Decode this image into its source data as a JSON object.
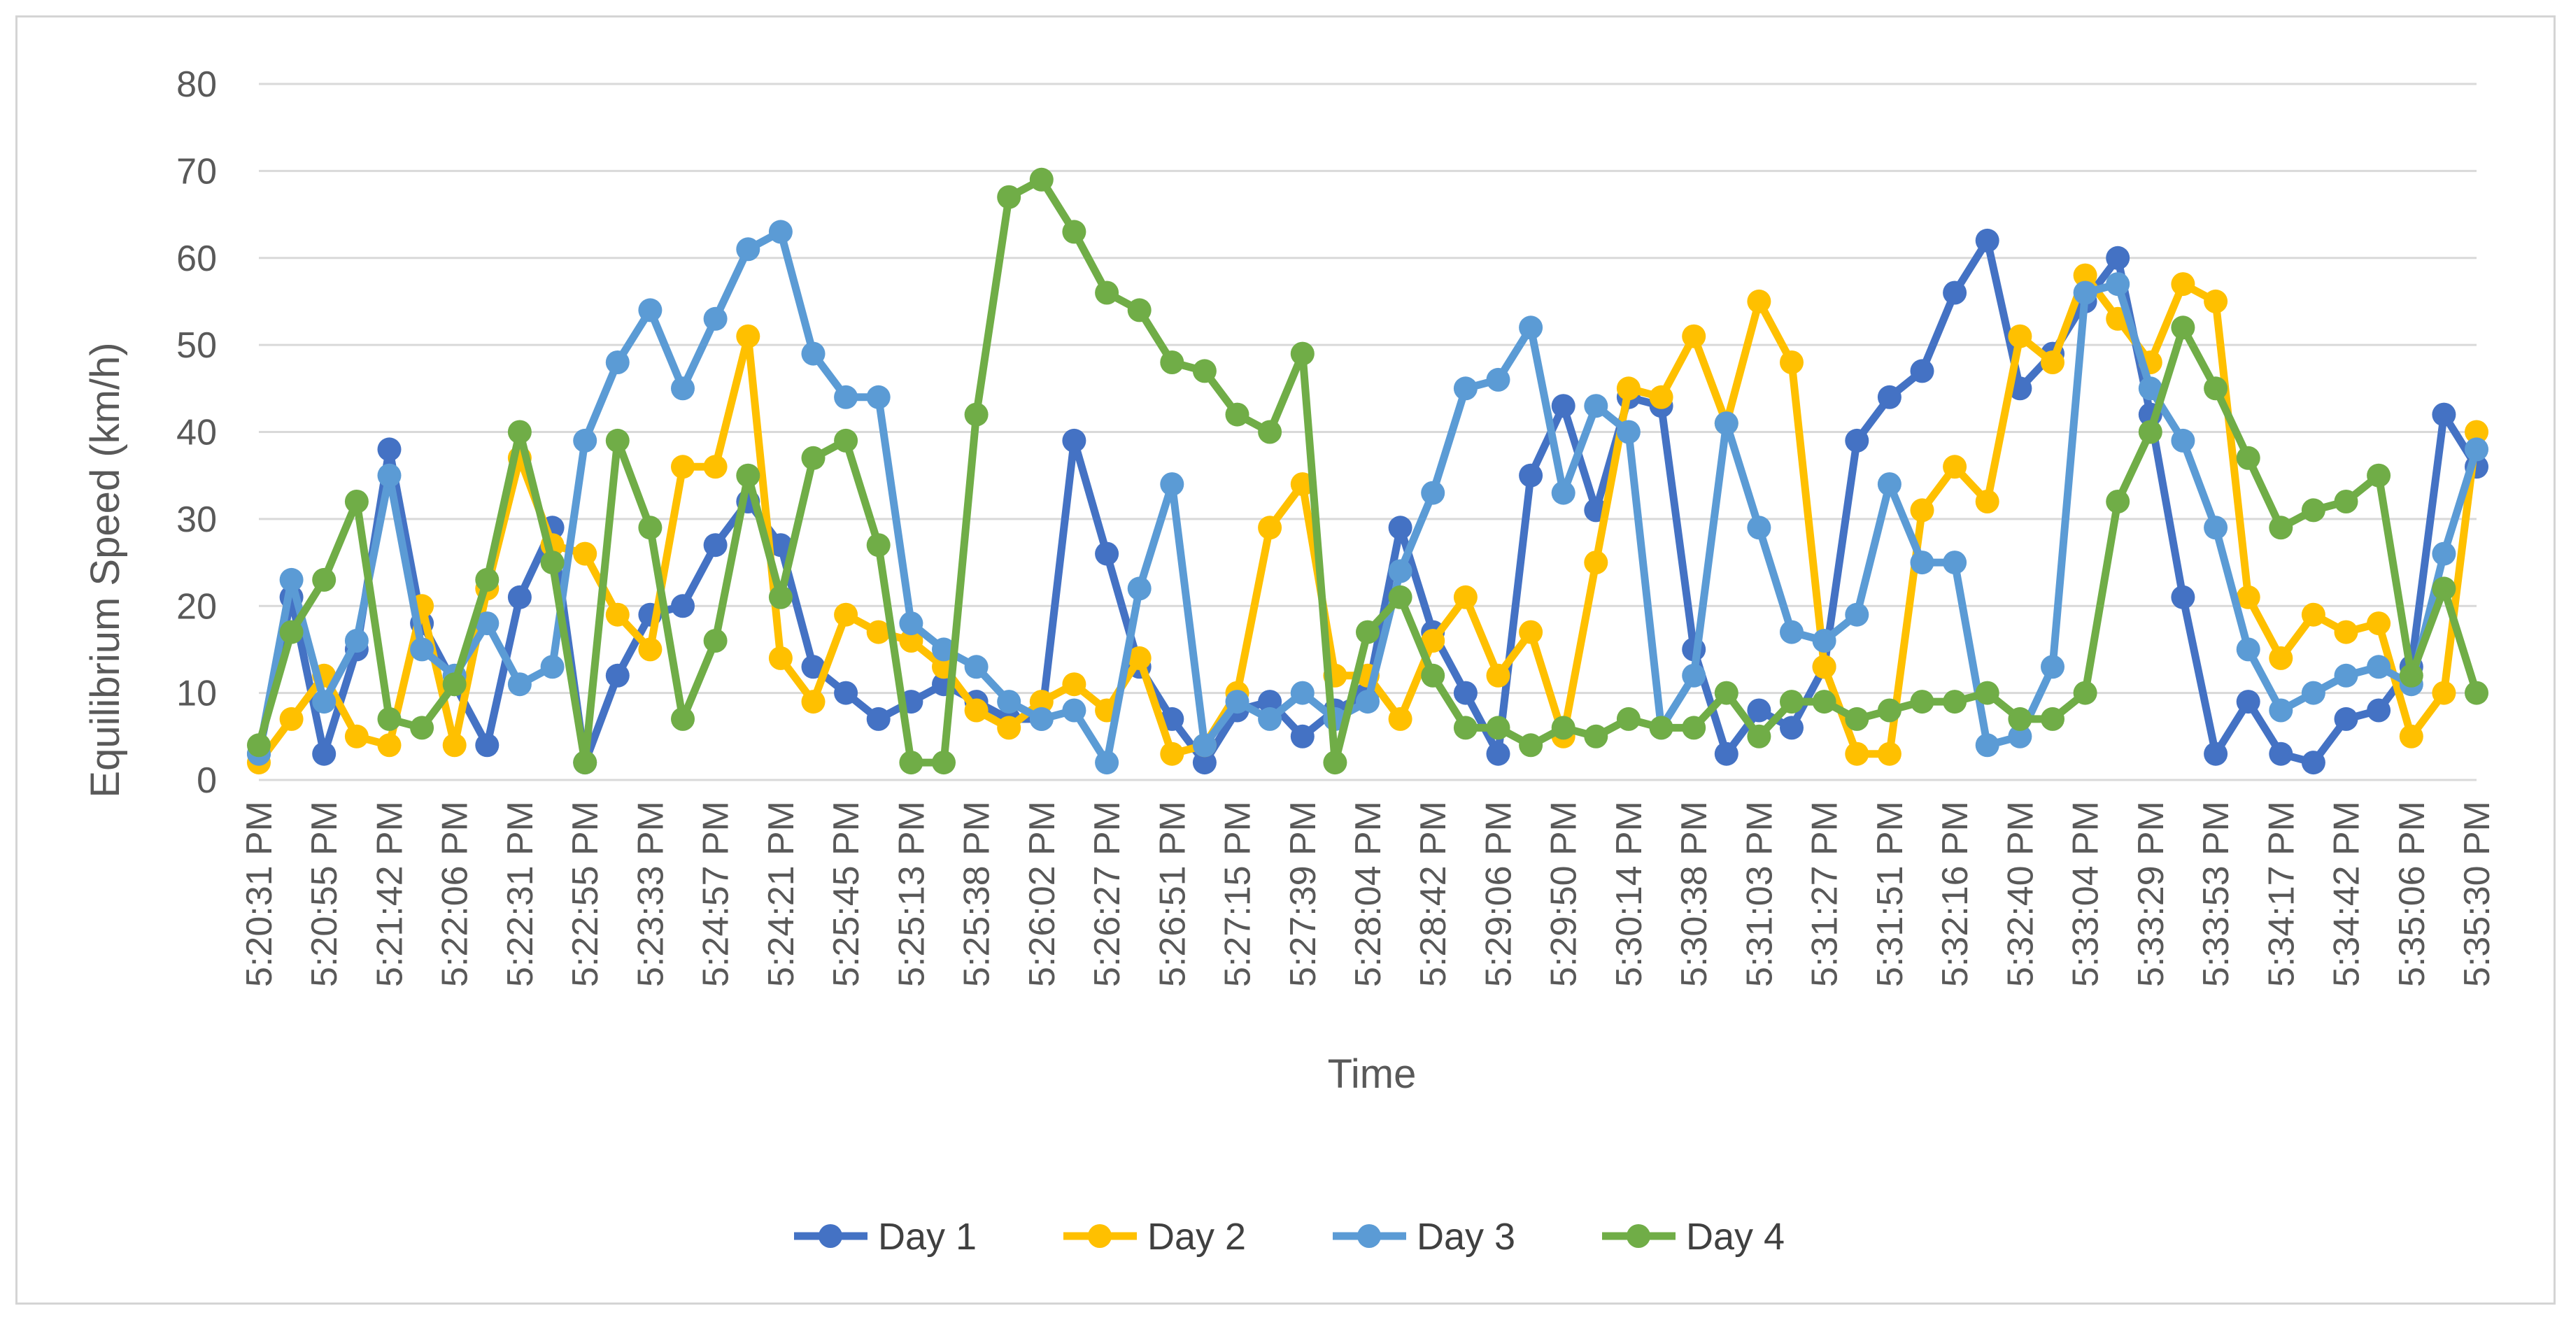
{
  "chart_data": {
    "type": "line",
    "title": "",
    "xlabel": "Time",
    "ylabel": "Equilibrium Speed (km/h)",
    "ylim": [
      0,
      80
    ],
    "yticks": [
      0,
      10,
      20,
      30,
      40,
      50,
      60,
      70,
      80
    ],
    "grid": true,
    "legend_position": "bottom",
    "x_tick_labels": [
      "5:20:31 PM",
      "5:20:55 PM",
      "5:21:42 PM",
      "5:22:06 PM",
      "5:22:31 PM",
      "5:22:55 PM",
      "5:23:33 PM",
      "5:24:57 PM",
      "5:24:21 PM",
      "5:25:45 PM",
      "5:25:13 PM",
      "5:25:38 PM",
      "5:26:02 PM",
      "5:26:27 PM",
      "5:26:51 PM",
      "5:27:15 PM",
      "5:27:39 PM",
      "5:28:04 PM",
      "5:28:42 PM",
      "5:29:06 PM",
      "5:29:50 PM",
      "5:30:14 PM",
      "5:30:38 PM",
      "5:31:03 PM",
      "5:31:27 PM",
      "5:31:51 PM",
      "5:32:16 PM",
      "5:32:40 PM",
      "5:33:04 PM",
      "5:33:29 PM",
      "5:33:53 PM",
      "5:34:17 PM",
      "5:34:42 PM",
      "5:35:06 PM",
      "5:35:30 PM"
    ],
    "series": [
      {
        "name": "Day 1",
        "color": "#4472c4",
        "values": [
          3,
          21,
          3,
          15,
          38,
          18,
          11,
          4,
          21,
          29,
          2,
          12,
          19,
          20,
          27,
          32,
          27,
          13,
          10,
          7,
          9,
          11,
          9,
          7,
          7,
          39,
          26,
          13,
          7,
          2,
          8,
          9,
          5,
          8,
          10,
          29,
          17,
          10,
          3,
          35,
          43,
          31,
          44,
          43,
          15,
          3,
          8,
          6,
          13,
          39,
          44,
          47,
          56,
          62,
          45,
          49,
          55,
          60,
          42,
          21,
          3,
          9,
          3,
          2,
          7,
          8,
          13,
          42,
          36
        ]
      },
      {
        "name": "Day 2",
        "color": "#ffc000",
        "values": [
          2,
          7,
          12,
          5,
          4,
          20,
          4,
          22,
          37,
          27,
          26,
          19,
          15,
          36,
          36,
          51,
          14,
          9,
          19,
          17,
          16,
          13,
          8,
          6,
          9,
          11,
          8,
          14,
          3,
          4,
          10,
          29,
          34,
          12,
          12,
          7,
          16,
          21,
          12,
          17,
          5,
          25,
          45,
          44,
          51,
          41,
          55,
          48,
          13,
          3,
          3,
          31,
          36,
          32,
          51,
          48,
          58,
          53,
          48,
          57,
          55,
          21,
          14,
          19,
          17,
          18,
          5,
          10,
          40
        ]
      },
      {
        "name": "Day 3",
        "color": "#5b9bd5",
        "values": [
          3,
          23,
          9,
          16,
          35,
          15,
          12,
          18,
          11,
          13,
          39,
          48,
          54,
          45,
          53,
          61,
          63,
          49,
          44,
          44,
          18,
          15,
          13,
          9,
          7,
          8,
          2,
          22,
          34,
          4,
          9,
          7,
          10,
          7,
          9,
          24,
          33,
          45,
          46,
          52,
          33,
          43,
          40,
          6,
          12,
          41,
          29,
          17,
          16,
          19,
          34,
          25,
          25,
          4,
          5,
          13,
          56,
          57,
          45,
          39,
          29,
          15,
          8,
          10,
          12,
          13,
          11,
          26,
          38
        ]
      },
      {
        "name": "Day 4",
        "color": "#70ad47",
        "values": [
          4,
          17,
          23,
          32,
          7,
          6,
          11,
          23,
          40,
          25,
          2,
          39,
          29,
          7,
          16,
          35,
          21,
          37,
          39,
          27,
          2,
          2,
          42,
          67,
          69,
          63,
          56,
          54,
          48,
          47,
          42,
          40,
          49,
          2,
          17,
          21,
          12,
          6,
          6,
          4,
          6,
          5,
          7,
          6,
          6,
          10,
          5,
          9,
          9,
          7,
          8,
          9,
          9,
          10,
          7,
          7,
          10,
          32,
          40,
          52,
          45,
          37,
          29,
          31,
          32,
          35,
          12,
          22,
          10
        ]
      }
    ]
  }
}
